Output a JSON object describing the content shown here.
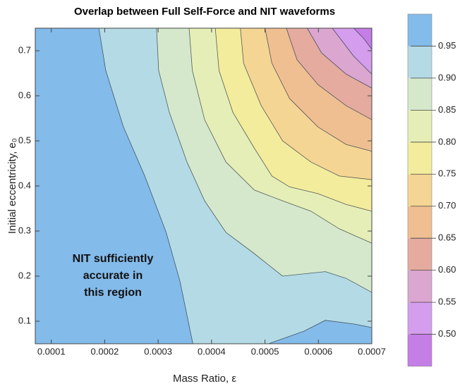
{
  "chart_data": {
    "type": "contour",
    "title": "Overlap between Full Self-Force and NIT waveforms",
    "x_label": "Mass Ratio, ε",
    "y_label": "Initial eccentricity, e₀",
    "annotation": [
      "NIT sufficiently",
      "accurate in",
      "this region"
    ],
    "xlim": [
      7e-05,
      0.0007
    ],
    "ylim": [
      0.05,
      0.75
    ],
    "xticks": [
      0.0001,
      0.0002,
      0.0003,
      0.0004,
      0.0005,
      0.0006,
      0.0007
    ],
    "yticks": [
      0.1,
      0.2,
      0.3,
      0.4,
      0.5,
      0.6,
      0.7
    ],
    "colorbar": {
      "lim": [
        0.45,
        1.0
      ],
      "ticks": [
        {
          "value": 0.5,
          "label": "0.50"
        },
        0.55,
        {
          "value": 0.6,
          "label": "0.60"
        },
        0.65,
        {
          "value": 0.7,
          "label": "0.70"
        },
        0.75,
        {
          "value": 0.8,
          "label": "0.80"
        },
        0.85,
        {
          "value": 0.9,
          "label": "0.90"
        },
        0.95
      ],
      "colors": [
        "#c47ee6",
        "#d59ded",
        "#dba6cf",
        "#e5ab9f",
        "#efbf91",
        "#f5d593",
        "#f3ec9c",
        "#e5eeb6",
        "#d5e8cb",
        "#b4dbe5",
        "#83bbea"
      ]
    },
    "contours": [
      {
        "level": 0.5,
        "x": [
          0.000666,
          0.000685,
          0.0007
        ],
        "y": [
          0.75,
          0.727,
          0.703
        ]
      },
      {
        "level": 0.55,
        "x": [
          0.000626,
          0.000666,
          0.0007
        ],
        "y": [
          0.75,
          0.688,
          0.648
        ]
      },
      {
        "level": 0.6,
        "x": [
          0.000579,
          0.000606,
          0.000652,
          0.0007
        ],
        "y": [
          0.75,
          0.695,
          0.648,
          0.617
        ]
      },
      {
        "level": 0.65,
        "x": [
          0.00054,
          0.00056,
          0.000599,
          0.000652,
          0.0007
        ],
        "y": [
          0.75,
          0.68,
          0.625,
          0.578,
          0.547
        ]
      },
      {
        "level": 0.7,
        "x": [
          0.0005,
          0.000513,
          0.000546,
          0.000599,
          0.000652,
          0.0007
        ],
        "y": [
          0.75,
          0.672,
          0.594,
          0.531,
          0.492,
          0.477
        ]
      },
      {
        "level": 0.75,
        "x": [
          0.000454,
          0.00046,
          0.000493,
          0.000533,
          0.000586,
          0.000639,
          0.0007
        ],
        "y": [
          0.75,
          0.672,
          0.578,
          0.5,
          0.453,
          0.422,
          0.414
        ]
      },
      {
        "level": 0.8,
        "x": [
          0.000407,
          0.000414,
          0.00044,
          0.00048,
          0.000513,
          0.000546,
          0.000599,
          0.000652,
          0.0007
        ],
        "y": [
          0.75,
          0.656,
          0.563,
          0.484,
          0.422,
          0.398,
          0.383,
          0.359,
          0.344
        ]
      },
      {
        "level": 0.85,
        "x": [
          0.000358,
          0.000364,
          0.000387,
          0.000427,
          0.00048,
          0.000533,
          0.000586,
          0.000639,
          0.0007
        ],
        "y": [
          0.75,
          0.656,
          0.547,
          0.453,
          0.391,
          0.367,
          0.344,
          0.305,
          0.273
        ]
      },
      {
        "level": 0.9,
        "x": [
          0.000297,
          0.000301,
          0.000321,
          0.000354,
          0.000387,
          0.000427,
          0.00048,
          0.000533,
          0.000613,
          0.000652,
          0.0007
        ],
        "y": [
          0.75,
          0.656,
          0.563,
          0.453,
          0.367,
          0.297,
          0.25,
          0.2,
          0.21,
          0.195,
          0.164
        ]
      },
      {
        "level": 0.95,
        "x": [
          0.000189,
          0.000202,
          0.000235,
          0.000275,
          0.000315,
          0.000341,
          0.000365
        ],
        "y": [
          0.75,
          0.656,
          0.531,
          0.422,
          0.297,
          0.188,
          0.05
        ]
      },
      {
        "level": 0.95,
        "x": [
          0.000507,
          0.000573,
          0.000613,
          0.000666,
          0.0007
        ],
        "y": [
          0.05,
          0.078,
          0.102,
          0.094,
          0.086
        ]
      }
    ]
  }
}
